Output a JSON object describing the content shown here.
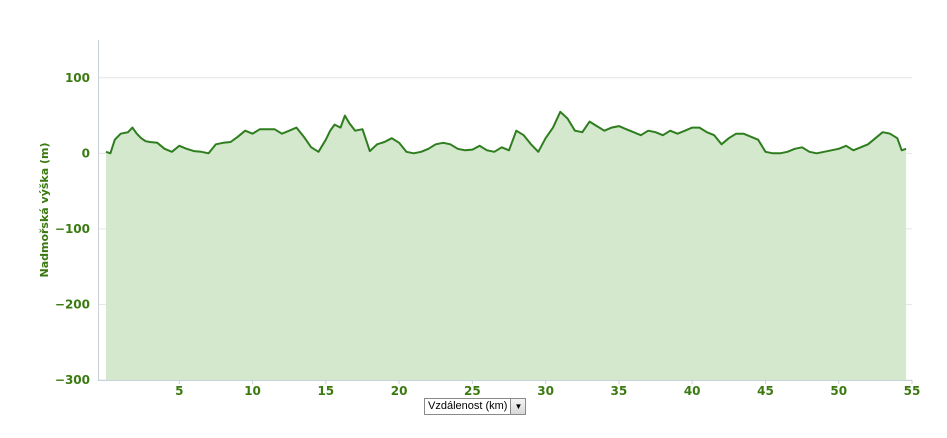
{
  "chart_data": {
    "type": "area",
    "title": "",
    "xlabel": "",
    "ylabel": "Nadmořská výška (m)",
    "x_selector": {
      "selected": "Vzdálenost (km)",
      "icon": "chevron-down-icon"
    },
    "xlim": [
      0,
      55
    ],
    "ylim": [
      -300,
      150
    ],
    "x_ticks": [
      5,
      10,
      15,
      20,
      25,
      30,
      35,
      40,
      45,
      50,
      55
    ],
    "y_ticks": [
      100,
      0,
      -100,
      -200,
      -300
    ],
    "x_tick_labels": [
      "5",
      "10",
      "15",
      "20",
      "25",
      "30",
      "35",
      "40",
      "45",
      "50",
      "55"
    ],
    "y_tick_labels": [
      "100",
      "0",
      "−100",
      "−200",
      "−300"
    ],
    "grid": true,
    "colors": {
      "line": "#2e7d1e",
      "fill": "#d3e8cc",
      "grid": "#e6e6e6",
      "axis": "#c8d0d8",
      "label": "#3a7a10"
    },
    "series": [
      {
        "x": [
          0,
          0.3,
          0.6,
          1.0,
          1.5,
          1.8,
          2.1,
          2.4,
          2.7,
          3.0,
          3.5,
          4.0,
          4.5,
          5.0,
          5.5,
          6.0,
          6.5,
          7.0,
          7.5,
          8.0,
          8.5,
          9.0,
          9.5,
          10.0,
          10.5,
          11.0,
          11.5,
          12.0,
          12.5,
          13.0,
          13.5,
          14.0,
          14.5,
          15.0,
          15.3,
          15.6,
          16.0,
          16.3,
          16.6,
          17.0,
          17.5,
          18.0,
          18.5,
          19.0,
          19.5,
          20.0,
          20.5,
          21.0,
          21.5,
          22.0,
          22.5,
          23.0,
          23.5,
          24.0,
          24.5,
          25.0,
          25.5,
          26.0,
          26.5,
          27.0,
          27.5,
          28.0,
          28.5,
          29.0,
          29.5,
          30.0,
          30.5,
          31.0,
          31.5,
          32.0,
          32.5,
          33.0,
          33.5,
          34.0,
          34.5,
          35.0,
          35.5,
          36.0,
          36.5,
          37.0,
          37.5,
          38.0,
          38.5,
          39.0,
          39.5,
          40.0,
          40.5,
          41.0,
          41.5,
          42.0,
          42.5,
          43.0,
          43.5,
          44.0,
          44.5,
          45.0,
          45.5,
          46.0,
          46.5,
          47.0,
          47.5,
          48.0,
          48.5,
          49.0,
          49.5,
          50.0,
          50.5,
          51.0,
          51.5,
          52.0,
          52.5,
          53.0,
          53.5,
          54.0,
          54.3,
          54.6
        ],
        "values": [
          2,
          0,
          18,
          26,
          28,
          34,
          26,
          20,
          16,
          15,
          14,
          6,
          2,
          10,
          6,
          3,
          2,
          0,
          12,
          14,
          15,
          22,
          30,
          26,
          32,
          32,
          32,
          26,
          30,
          34,
          22,
          8,
          2,
          18,
          30,
          38,
          34,
          50,
          40,
          30,
          32,
          3,
          12,
          15,
          20,
          14,
          2,
          0,
          2,
          6,
          12,
          14,
          12,
          6,
          4,
          5,
          10,
          4,
          2,
          8,
          4,
          30,
          24,
          12,
          2,
          20,
          34,
          55,
          46,
          30,
          28,
          42,
          36,
          30,
          34,
          36,
          32,
          28,
          24,
          30,
          28,
          24,
          30,
          26,
          30,
          34,
          34,
          28,
          24,
          12,
          20,
          26,
          26,
          22,
          18,
          2,
          0,
          0,
          2,
          6,
          8,
          2,
          0,
          2,
          4,
          6,
          10,
          4,
          8,
          12,
          20,
          28,
          26,
          20,
          4,
          6
        ]
      }
    ]
  }
}
